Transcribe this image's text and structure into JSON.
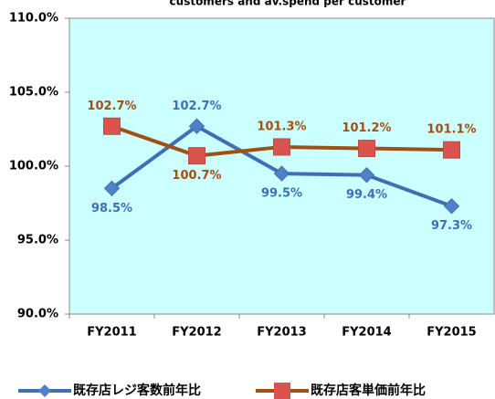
{
  "chart_data": {
    "type": "line",
    "title": "customers and av.spend per customer",
    "categories": [
      "FY2011",
      "FY2012",
      "FY2013",
      "FY2014",
      "FY2015"
    ],
    "series": [
      {
        "name": "既存店レジ客数前年比",
        "color": "#3d6fb4",
        "marker": "diamond",
        "values": [
          98.5,
          102.7,
          99.5,
          99.4,
          97.3
        ],
        "value_labels": [
          "98.5%",
          "102.7%",
          "99.5%",
          "99.4%",
          "97.3%"
        ]
      },
      {
        "name": "既存店客単価前年比",
        "color": "#a24f12",
        "marker": "square",
        "values": [
          102.7,
          100.7,
          101.3,
          101.2,
          101.1
        ],
        "value_labels": [
          "102.7%",
          "100.7%",
          "101.3%",
          "101.2%",
          "101.1%"
        ]
      }
    ],
    "ylim": [
      90,
      110
    ],
    "yticks": [
      {
        "value": 90,
        "label": "90.0%"
      },
      {
        "value": 95,
        "label": "95.0%"
      },
      {
        "value": 100,
        "label": "100.0%"
      },
      {
        "value": 105,
        "label": "105.0%"
      },
      {
        "value": 110,
        "label": "110.0%"
      }
    ],
    "plot_background": "#ccffff"
  }
}
